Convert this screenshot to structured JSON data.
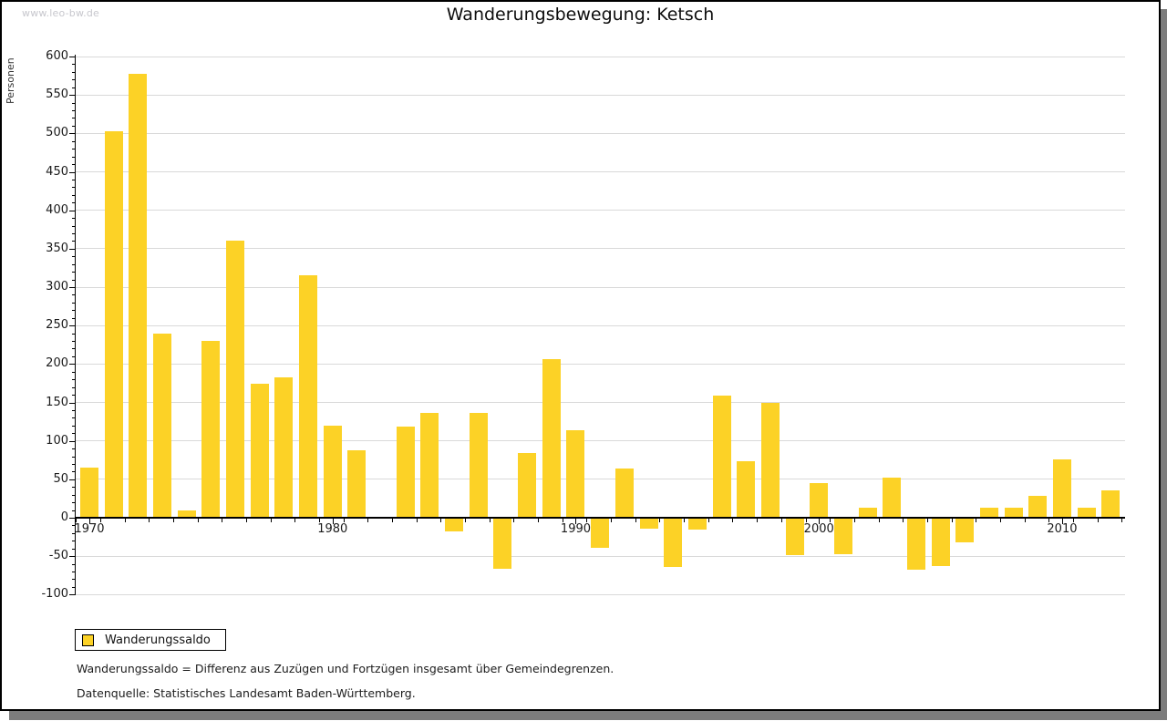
{
  "watermark": "www.leo-bw.de",
  "header": {
    "title": "Wanderungsbewegung: Ketsch"
  },
  "legend": {
    "label": "Wanderungssaldo",
    "swatch_color": "#fcd226"
  },
  "footnotes": {
    "definition": "Wanderungssaldo = Differenz aus Zuzügen und Fortzügen insgesamt über Gemeindegrenzen.",
    "source": "Datenquelle: Statistisches Landesamt Baden-Württemberg."
  },
  "chart_data": {
    "type": "bar",
    "title": "Wanderungsbewegung: Ketsch",
    "xlabel": "",
    "ylabel": "Personen",
    "ylim": [
      -100,
      600
    ],
    "ytick_step": 50,
    "ytick_minor_step": 10,
    "grid": "horizontal-only",
    "legend_position": "bottom-left",
    "bar_color": "#fcd226",
    "gridline_color": "#d9d9d9",
    "x": [
      1970,
      1971,
      1972,
      1973,
      1974,
      1975,
      1976,
      1977,
      1978,
      1979,
      1980,
      1981,
      1982,
      1983,
      1984,
      1985,
      1986,
      1987,
      1988,
      1989,
      1990,
      1991,
      1992,
      1993,
      1994,
      1995,
      1996,
      1997,
      1998,
      1999,
      2000,
      2001,
      2002,
      2003,
      2004,
      2005,
      2006,
      2007,
      2008,
      2009,
      2010,
      2011,
      2012
    ],
    "series": [
      {
        "name": "Wanderungssaldo",
        "values": [
          65,
          503,
          578,
          240,
          10,
          230,
          361,
          174,
          183,
          315,
          120,
          88,
          0,
          119,
          136,
          -18,
          136,
          -66,
          84,
          206,
          114,
          -39,
          64,
          -14,
          -64,
          -16,
          159,
          74,
          150,
          -49,
          45,
          -47,
          13,
          52,
          -67,
          -63,
          -32,
          13,
          13,
          28,
          76,
          13,
          36
        ]
      }
    ],
    "x_tick_labels": [
      "1970",
      "1980",
      "1990",
      "2000",
      "2010"
    ],
    "x_tick_label_years": [
      1970,
      1980,
      1990,
      2000,
      2010
    ]
  }
}
